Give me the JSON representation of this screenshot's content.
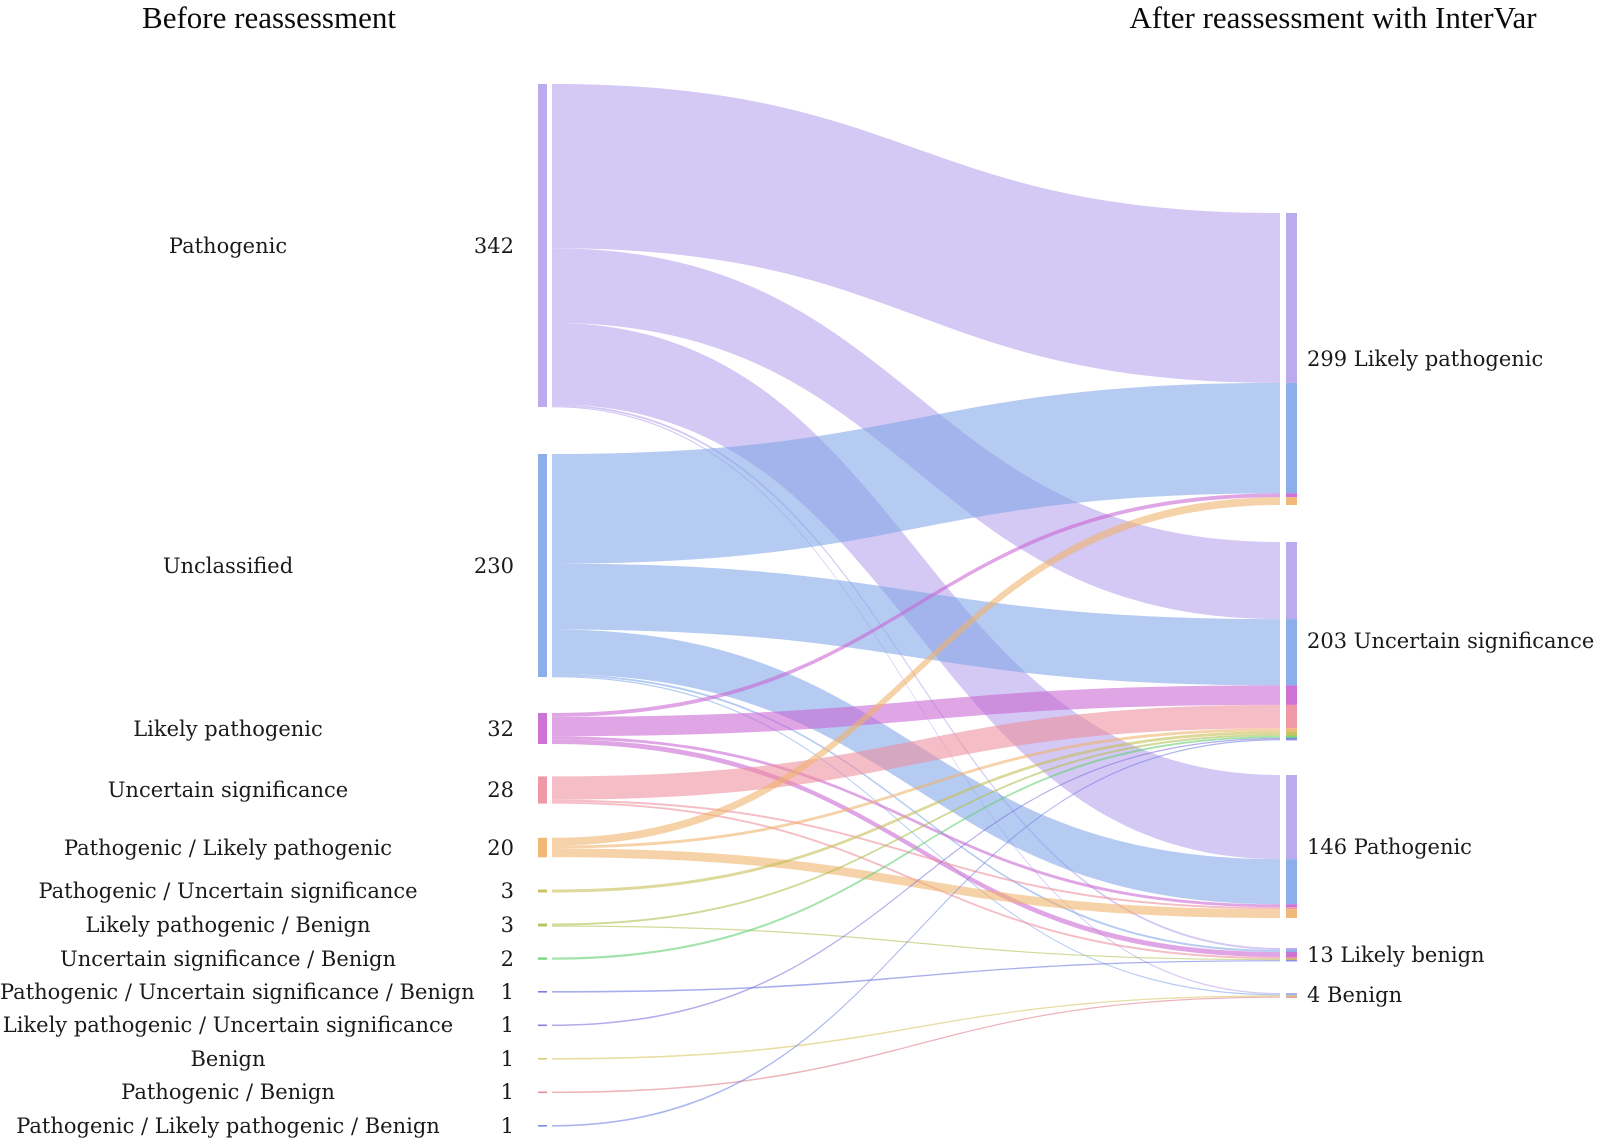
{
  "titles": {
    "left": "Before reassessment",
    "right": "After reassessment with InterVar"
  },
  "chart_data": {
    "type": "sankey",
    "title_left": "Before reassessment",
    "title_right": "After reassessment with InterVar",
    "left_nodes": [
      {
        "label": "Pathogenic",
        "value": 342,
        "color": "#b5a1ec"
      },
      {
        "label": "Unclassified",
        "value": 230,
        "color": "#7fa5e8"
      },
      {
        "label": "Likely pathogenic",
        "value": 32,
        "color": "#c964d2"
      },
      {
        "label": "Uncertain significance",
        "value": 28,
        "color": "#ed8d9d"
      },
      {
        "label": "Pathogenic / Likely pathogenic",
        "value": 20,
        "color": "#f0b169"
      },
      {
        "label": "Pathogenic / Uncertain significance",
        "value": 3,
        "color": "#c5bd52"
      },
      {
        "label": "Likely pathogenic / Benign",
        "value": 3,
        "color": "#aebf4e"
      },
      {
        "label": "Uncertain significance / Benign",
        "value": 2,
        "color": "#5ecf70"
      },
      {
        "label": "Pathogenic / Uncertain significance / Benign",
        "value": 1,
        "color": "#6a71dd"
      },
      {
        "label": "Likely pathogenic / Uncertain significance",
        "value": 1,
        "color": "#7e6fdd"
      },
      {
        "label": "Benign",
        "value": 1,
        "color": "#d8c45e"
      },
      {
        "label": "Pathogenic / Benign",
        "value": 1,
        "color": "#e2808d"
      },
      {
        "label": "Pathogenic / Likely pathogenic / Benign",
        "value": 1,
        "color": "#6f80e0"
      }
    ],
    "right_nodes": [
      {
        "label": "Likely pathogenic",
        "value": 299
      },
      {
        "label": "Uncertain significance",
        "value": 203
      },
      {
        "label": "Pathogenic",
        "value": 146
      },
      {
        "label": "Likely benign",
        "value": 13
      },
      {
        "label": "Benign",
        "value": 4
      }
    ],
    "flows": [
      {
        "from": 0,
        "to": 0,
        "value": 174
      },
      {
        "from": 0,
        "to": 1,
        "value": 79
      },
      {
        "from": 0,
        "to": 2,
        "value": 86
      },
      {
        "from": 0,
        "to": 3,
        "value": 2
      },
      {
        "from": 0,
        "to": 4,
        "value": 1
      },
      {
        "from": 1,
        "to": 0,
        "value": 113
      },
      {
        "from": 1,
        "to": 1,
        "value": 68
      },
      {
        "from": 1,
        "to": 2,
        "value": 46
      },
      {
        "from": 1,
        "to": 3,
        "value": 2
      },
      {
        "from": 1,
        "to": 4,
        "value": 1
      },
      {
        "from": 2,
        "to": 0,
        "value": 4
      },
      {
        "from": 2,
        "to": 1,
        "value": 20
      },
      {
        "from": 2,
        "to": 2,
        "value": 3
      },
      {
        "from": 2,
        "to": 3,
        "value": 5
      },
      {
        "from": 3,
        "to": 1,
        "value": 24
      },
      {
        "from": 3,
        "to": 2,
        "value": 2
      },
      {
        "from": 3,
        "to": 3,
        "value": 2
      },
      {
        "from": 4,
        "to": 0,
        "value": 8
      },
      {
        "from": 4,
        "to": 1,
        "value": 3
      },
      {
        "from": 4,
        "to": 2,
        "value": 9
      },
      {
        "from": 5,
        "to": 1,
        "value": 3
      },
      {
        "from": 6,
        "to": 1,
        "value": 2
      },
      {
        "from": 6,
        "to": 3,
        "value": 1
      },
      {
        "from": 7,
        "to": 1,
        "value": 2
      },
      {
        "from": 8,
        "to": 3,
        "value": 1
      },
      {
        "from": 9,
        "to": 1,
        "value": 1
      },
      {
        "from": 10,
        "to": 4,
        "value": 1
      },
      {
        "from": 11,
        "to": 4,
        "value": 1
      },
      {
        "from": 12,
        "to": 1,
        "value": 1
      }
    ],
    "flows_note": "Only node totals are labeled in the figure; individual flow values are estimated from ribbon widths and sum exactly to every labeled node total.",
    "legend_position": "none",
    "grid": false
  }
}
